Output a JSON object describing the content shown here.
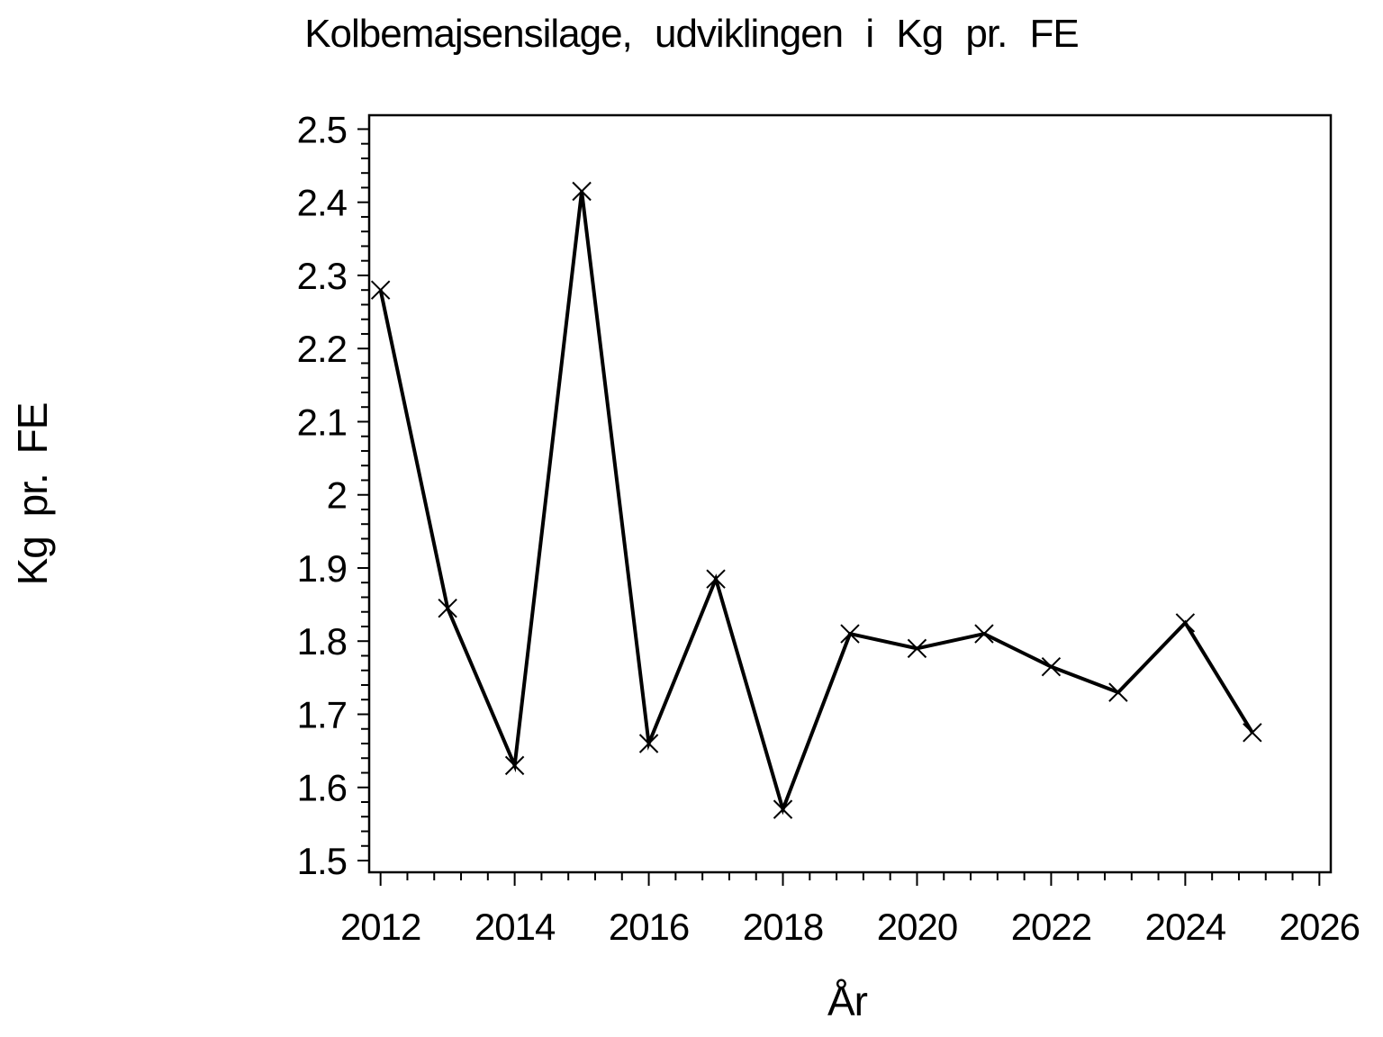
{
  "page": {
    "background_color": "#ffffff",
    "foreground_color": "#000000"
  },
  "chart_data": {
    "type": "line",
    "title": "Kolbemajsensilage, udviklingen i Kg pr. FE",
    "xlabel": "År",
    "ylabel": "Kg pr. FE",
    "x": [
      2012,
      2013,
      2014,
      2015,
      2016,
      2017,
      2018,
      2019,
      2020,
      2021,
      2022,
      2023,
      2024,
      2025
    ],
    "values": [
      2.28,
      1.845,
      1.63,
      2.415,
      1.66,
      1.885,
      1.57,
      1.81,
      1.79,
      1.81,
      1.765,
      1.73,
      1.825,
      1.675
    ],
    "marker": "x",
    "line_color": "#000000",
    "marker_color": "#000000",
    "grid": false,
    "legend": "none",
    "xlim": [
      2011.83,
      2026.17
    ],
    "ylim": [
      1.484,
      2.519
    ],
    "x_major_ticks": [
      2012,
      2014,
      2016,
      2018,
      2020,
      2022,
      2024,
      2026
    ],
    "x_tick_labels": [
      "2012",
      "2014",
      "2016",
      "2018",
      "2020",
      "2022",
      "2024",
      "2026"
    ],
    "x_minor_step": 0.4,
    "y_major_ticks": [
      2.5,
      2.4,
      2.3,
      2.2,
      2.1,
      2.0,
      1.9,
      1.8,
      1.7,
      1.6,
      1.5
    ],
    "y_tick_labels": [
      "2.5",
      "2.4",
      "2.3",
      "2.2",
      "2.1",
      "2",
      "1.9",
      "1.8",
      "1.7",
      "1.6",
      "1.5"
    ],
    "y_minor_step": 0.02
  }
}
